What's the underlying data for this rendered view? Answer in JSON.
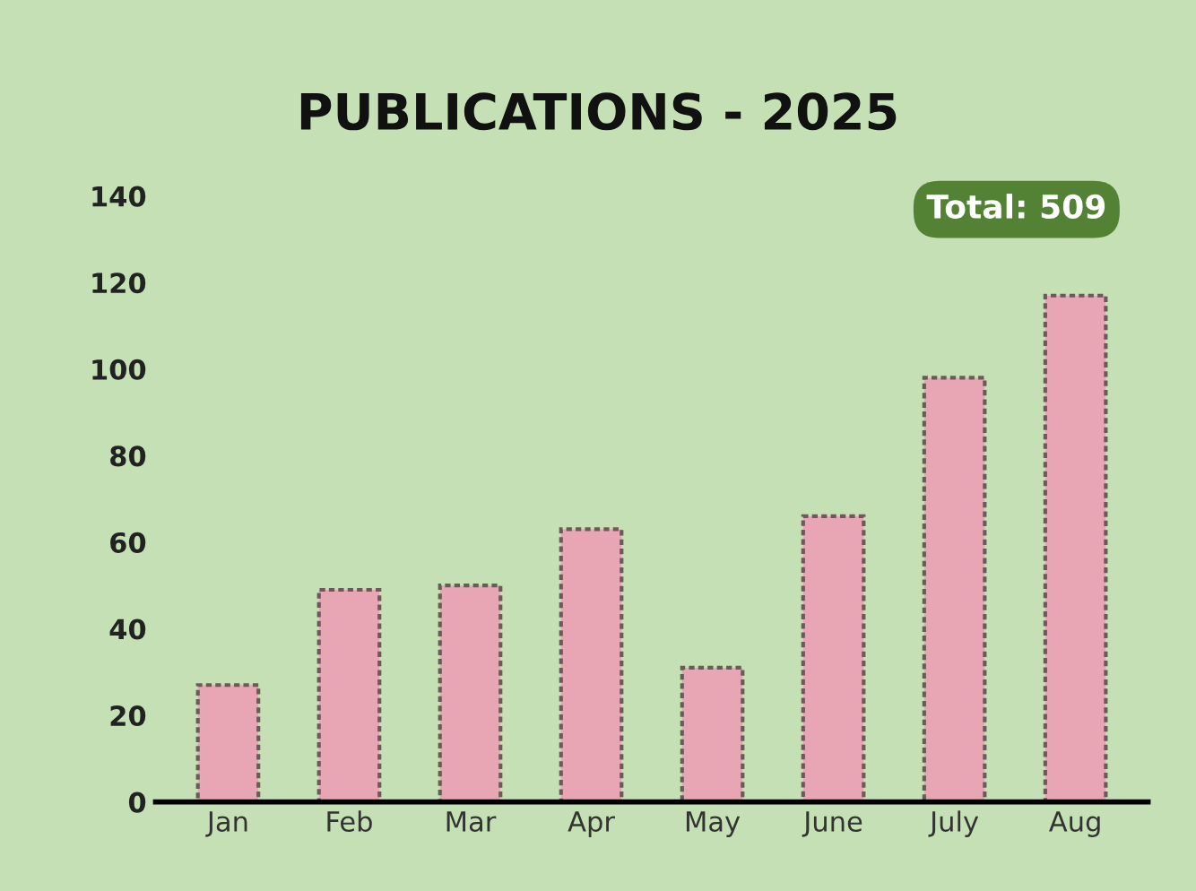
{
  "chart_data": {
    "type": "bar",
    "title": "PUBLICATIONS - 2025",
    "categories": [
      "Jan",
      "Feb",
      "Mar",
      "Apr",
      "May",
      "June",
      "July",
      "Aug"
    ],
    "values": [
      27,
      49,
      50,
      63,
      31,
      66,
      98,
      117
    ],
    "color": "#e8a6b4",
    "ylim": [
      0,
      140
    ],
    "yticks": [
      0,
      20,
      40,
      60,
      80,
      100,
      120,
      140
    ],
    "grid": false,
    "annotations": [
      "Total: 509"
    ]
  }
}
